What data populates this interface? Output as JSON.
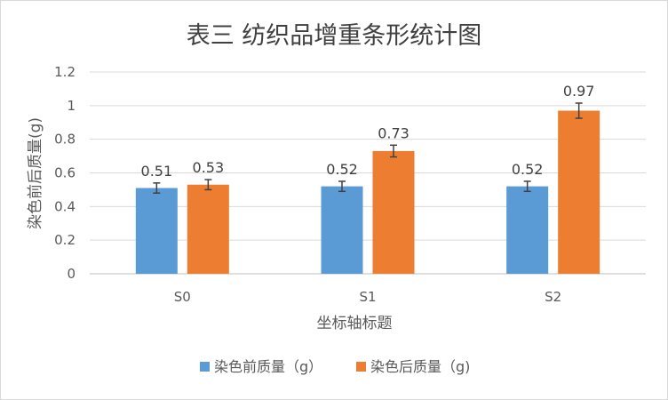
{
  "chart_data": {
    "type": "bar",
    "title": "表三 纺织品增重条形统计图",
    "xlabel": "坐标轴标题",
    "ylabel": "染色前后质量(g)",
    "categories": [
      "S0",
      "S1",
      "S2"
    ],
    "series": [
      {
        "name": "染色前质量（g）",
        "color": "#5b9bd5",
        "values": [
          0.51,
          0.52,
          0.52
        ],
        "labels": [
          "0.51",
          "0.52",
          "0.52"
        ],
        "error": [
          0.03,
          0.03,
          0.03
        ]
      },
      {
        "name": "染色后质量（g)",
        "color": "#ed7d31",
        "values": [
          0.53,
          0.73,
          0.97
        ],
        "labels": [
          "0.53",
          "0.73",
          "0.97"
        ],
        "error": [
          0.03,
          0.035,
          0.045
        ]
      }
    ],
    "ylim": [
      0,
      1.2
    ],
    "yticks": [
      "0",
      "0.2",
      "0.4",
      "0.6",
      "0.8",
      "1",
      "1.2"
    ],
    "grid": true,
    "legend": "bottom",
    "colors": {
      "gridline": "#d9d9d9",
      "axis": "#bfbfbf",
      "errorbar": "#404040"
    }
  }
}
